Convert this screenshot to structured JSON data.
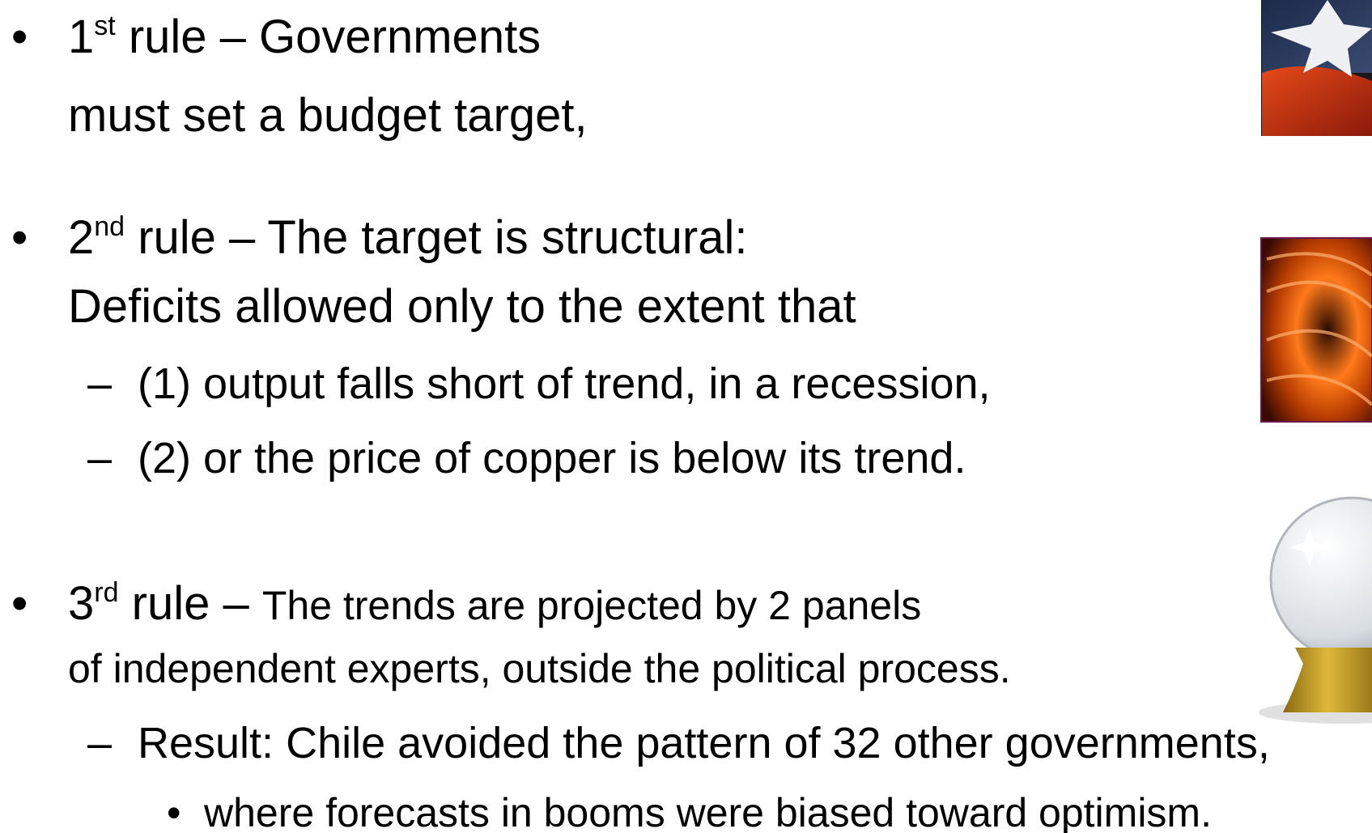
{
  "bullets": [
    {
      "ordinal": "1",
      "suffix": "st",
      "heading": "rule – Governments",
      "continuation": "must set a budget target,"
    },
    {
      "ordinal": "2",
      "suffix": "nd",
      "heading": "rule – The target is structural:",
      "continuation": "Deficits allowed only to the extent that",
      "subitems": [
        "(1) output falls short of trend, in a recession,",
        "(2) or the price of copper is below its trend."
      ]
    },
    {
      "ordinal": "3",
      "suffix": "rd",
      "heading": "rule –",
      "heading_detail": "The trends are projected by 2 panels",
      "continuation": "of independent experts, outside the political process.",
      "subitems": [
        "Result: Chile avoided the pattern of 32 other governments,"
      ],
      "subsubitems": [
        "where forecasts in booms were biased toward optimism."
      ]
    }
  ]
}
